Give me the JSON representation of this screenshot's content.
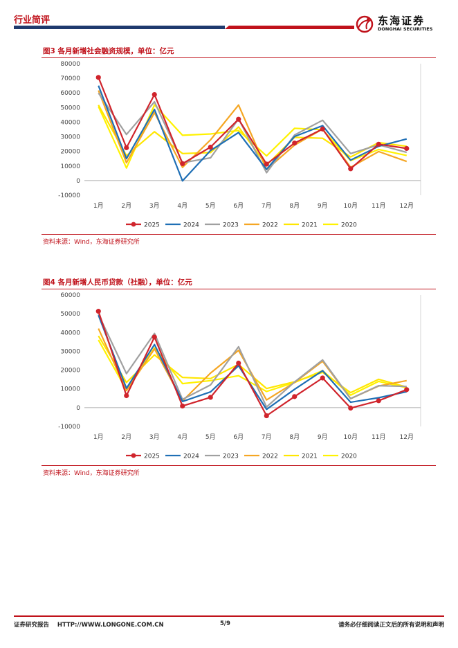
{
  "header": {
    "category": "行业简评",
    "logo_cn": "东海证券",
    "logo_en": "DONGHAI SECURITIES",
    "brand_red": "#c0121b",
    "brand_blue": "#1f3a6e"
  },
  "figures": [
    {
      "title": "图3  各月新增社会融资规模，单位：亿元",
      "source": "资料来源：Wind，东海证券研究所"
    },
    {
      "title": "图4  各月新增人民币贷款（社融），单位：亿元",
      "source": "资料来源：Wind，东海证券研究所"
    }
  ],
  "chart_data": [
    {
      "type": "line",
      "title": "各月新增社会融资规模，单位：亿元",
      "categories": [
        "1月",
        "2月",
        "3月",
        "4月",
        "5月",
        "6月",
        "7月",
        "8月",
        "9月",
        "10月",
        "11月",
        "12月"
      ],
      "ylim": [
        -10000,
        80000
      ],
      "yticks": [
        -10000,
        0,
        10000,
        20000,
        30000,
        40000,
        50000,
        60000,
        70000,
        80000
      ],
      "series": [
        {
          "name": "2025",
          "color": "#d0242c",
          "marker": true,
          "values": [
            70600,
            22500,
            58900,
            11600,
            22900,
            42000,
            11300,
            25700,
            35300,
            8100,
            24900,
            22000
          ]
        },
        {
          "name": "2024",
          "color": "#1f6fb5",
          "marker": false,
          "values": [
            65000,
            15000,
            48700,
            -200,
            20600,
            32900,
            7700,
            30200,
            37600,
            14000,
            23500,
            28500
          ]
        },
        {
          "name": "2023",
          "color": "#a0a0a0",
          "marker": false,
          "values": [
            59900,
            31600,
            53900,
            12200,
            15600,
            42200,
            5400,
            31200,
            41300,
            18500,
            24500,
            19300
          ]
        },
        {
          "name": "2022",
          "color": "#f5a623",
          "marker": false,
          "values": [
            61700,
            12200,
            46500,
            9100,
            27900,
            51700,
            7600,
            24300,
            35300,
            9100,
            19900,
            13100
          ]
        },
        {
          "name": "2021",
          "color": "#ffe600",
          "marker": false,
          "values": [
            51700,
            17100,
            33500,
            18500,
            19200,
            36700,
            10600,
            29600,
            29000,
            16200,
            26000,
            23500
          ]
        },
        {
          "name": "2020",
          "color": "#fff200",
          "marker": false,
          "values": [
            50700,
            8600,
            51800,
            31000,
            31900,
            34300,
            16900,
            35800,
            34800,
            13700,
            21300,
            17200
          ]
        }
      ]
    },
    {
      "type": "line",
      "title": "各月新增人民币贷款（社融），单位：亿元",
      "categories": [
        "1月",
        "2月",
        "3月",
        "4月",
        "5月",
        "6月",
        "7月",
        "8月",
        "9月",
        "10月",
        "11月",
        "12月"
      ],
      "ylim": [
        -10000,
        60000
      ],
      "yticks": [
        -10000,
        0,
        10000,
        20000,
        30000,
        40000,
        50000,
        60000
      ],
      "series": [
        {
          "name": "2025",
          "color": "#d0242c",
          "marker": true,
          "values": [
            51300,
            6400,
            37600,
            900,
            5500,
            23700,
            -4300,
            5900,
            15800,
            -200,
            3700,
            9600
          ]
        },
        {
          "name": "2024",
          "color": "#1f6fb5",
          "marker": false,
          "values": [
            49200,
            10300,
            33600,
            3300,
            8400,
            22300,
            -900,
            9800,
            19700,
            2900,
            5300,
            8500
          ]
        },
        {
          "name": "2023",
          "color": "#a0a0a0",
          "marker": false,
          "values": [
            49700,
            18100,
            39500,
            4400,
            12100,
            32400,
            400,
            13700,
            25400,
            4800,
            11700,
            11300
          ]
        },
        {
          "name": "2022",
          "color": "#f5a623",
          "marker": false,
          "values": [
            42100,
            9100,
            31300,
            3600,
            18400,
            30500,
            4100,
            13400,
            24700,
            4800,
            11500,
            14400
          ]
        },
        {
          "name": "2021",
          "color": "#ffe600",
          "marker": false,
          "values": [
            38200,
            13400,
            28100,
            16100,
            15500,
            23000,
            10200,
            13800,
            18800,
            8000,
            15100,
            11000
          ]
        },
        {
          "name": "2020",
          "color": "#fff200",
          "marker": false,
          "values": [
            36000,
            9400,
            31800,
            12800,
            14400,
            17000,
            8600,
            13400,
            19700,
            6700,
            14000,
            10600
          ]
        }
      ]
    }
  ],
  "footer": {
    "left": "证券研究报告    HTTP://WWW.LONGONE.COM.CN",
    "page": "5/9",
    "right": "请务必仔细阅读正文后的所有说明和声明"
  }
}
